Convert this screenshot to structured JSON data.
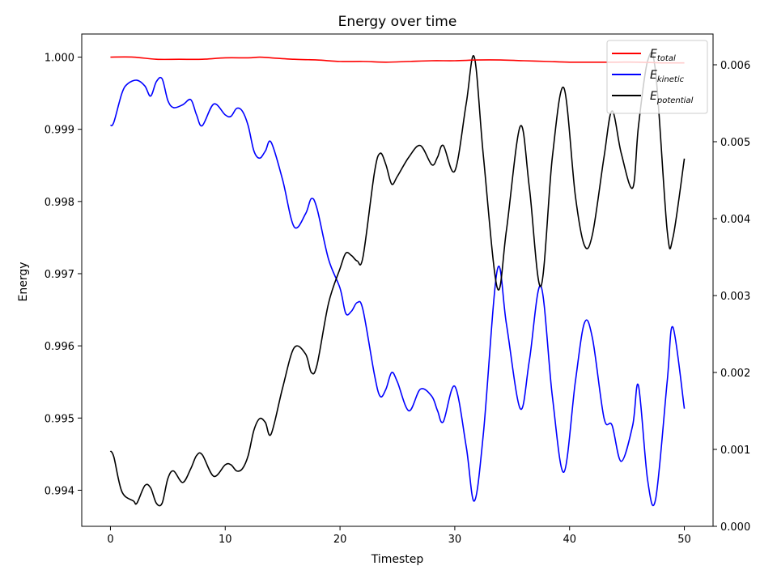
{
  "chart_data": {
    "type": "line",
    "title": "Energy over time",
    "xlabel": "Timestep",
    "ylabel": "Energy",
    "xlim": [
      -2.5,
      52.5
    ],
    "ylim_left": [
      0.9935,
      1.00032
    ],
    "ylim_right": [
      0.0,
      0.0064
    ],
    "x_ticks": [
      "0",
      "10",
      "20",
      "30",
      "40",
      "50"
    ],
    "y_left_ticks": [
      "0.994",
      "0.995",
      "0.996",
      "0.997",
      "0.998",
      "0.999",
      "1.000"
    ],
    "y_right_ticks": [
      "0.000",
      "0.001",
      "0.002",
      "0.003",
      "0.004",
      "0.005",
      "0.006"
    ],
    "grid": false,
    "legend": {
      "placement": "top-right",
      "entries": [
        {
          "base": "E",
          "sub": "total",
          "color": "#ff0000"
        },
        {
          "base": "E",
          "sub": "kinetic",
          "color": "#0000ff"
        },
        {
          "base": "E",
          "sub": "potential",
          "color": "#000000"
        }
      ]
    },
    "series": [
      {
        "label": "E_total",
        "axis": "left",
        "color": "#ff0000",
        "x": [
          0,
          2,
          4,
          6,
          8,
          10,
          12,
          13,
          14,
          16,
          18,
          20,
          22,
          24,
          26,
          28,
          30,
          32,
          34,
          36,
          38,
          40,
          42,
          44,
          46,
          48,
          50
        ],
        "y": [
          1.0,
          1.0,
          0.99997,
          0.99997,
          0.99997,
          0.99999,
          0.99999,
          1.0,
          0.99999,
          0.99997,
          0.99996,
          0.99994,
          0.99994,
          0.99993,
          0.99994,
          0.99995,
          0.99995,
          0.99996,
          0.99996,
          0.99995,
          0.99994,
          0.99993,
          0.99993,
          0.99993,
          0.99993,
          0.99992,
          0.99992
        ]
      },
      {
        "label": "E_kinetic",
        "axis": "left",
        "color": "#0000ff",
        "x": [
          0,
          0.3,
          1,
          1.5,
          2.3,
          3,
          3.5,
          4,
          4.5,
          5,
          5.5,
          6.3,
          7,
          7.5,
          8,
          9,
          10,
          10.5,
          11,
          11.5,
          12,
          12.5,
          13,
          13.5,
          14,
          15,
          16,
          17,
          17.5,
          18,
          19,
          20,
          20.5,
          21,
          21.5,
          22,
          23,
          23.5,
          24,
          24.5,
          25,
          26,
          27,
          28,
          28.5,
          29,
          30,
          31,
          31.7,
          32.5,
          33.7,
          34.5,
          35.7,
          36.5,
          37.5,
          38.5,
          39.5,
          40.5,
          41.3,
          42,
          43,
          43.7,
          44.5,
          45.5,
          46,
          46.8,
          47.5,
          48.5,
          49,
          50
        ],
        "y": [
          0.99905,
          0.9991,
          0.9995,
          0.99963,
          0.99968,
          0.9996,
          0.99946,
          0.99966,
          0.9997,
          0.9994,
          0.9993,
          0.99934,
          0.99941,
          0.9992,
          0.99905,
          0.99935,
          0.9992,
          0.99918,
          0.99929,
          0.99925,
          0.99905,
          0.9987,
          0.9986,
          0.9987,
          0.99882,
          0.9983,
          0.99765,
          0.99783,
          0.99804,
          0.9979,
          0.9972,
          0.9968,
          0.99645,
          0.99648,
          0.9966,
          0.9965,
          0.9956,
          0.9953,
          0.9954,
          0.99563,
          0.9955,
          0.9951,
          0.9954,
          0.9953,
          0.9951,
          0.99495,
          0.99544,
          0.9946,
          0.99385,
          0.9948,
          0.99705,
          0.9963,
          0.99513,
          0.9958,
          0.99683,
          0.9953,
          0.99425,
          0.9955,
          0.99632,
          0.9961,
          0.995,
          0.9949,
          0.9944,
          0.9949,
          0.99545,
          0.99414,
          0.99388,
          0.9955,
          0.99626,
          0.99513
        ]
      },
      {
        "label": "E_potential",
        "axis": "right",
        "color": "#000000",
        "x": [
          0,
          0.3,
          1,
          2,
          2.3,
          3,
          3.5,
          4,
          4.5,
          5,
          5.5,
          6.3,
          7,
          7.5,
          8,
          9,
          10,
          10.5,
          11,
          11.5,
          12,
          12.5,
          13,
          13.5,
          14,
          15,
          16,
          17,
          17.5,
          18,
          19,
          20,
          20.5,
          21,
          21.5,
          22,
          23,
          23.5,
          24,
          24.5,
          25,
          26,
          27,
          28,
          28.5,
          29,
          30,
          31,
          31.7,
          32.5,
          33.7,
          34.5,
          35.7,
          36.5,
          37.5,
          38.5,
          39.5,
          40.5,
          41.3,
          42,
          43,
          43.7,
          44.5,
          45.5,
          46,
          46.8,
          47.5,
          48.5,
          49,
          50
        ],
        "y": [
          0.00098,
          0.0009,
          0.00045,
          0.00033,
          0.0003,
          0.00053,
          0.0005,
          0.0003,
          0.0003,
          0.00062,
          0.00072,
          0.00057,
          0.00075,
          0.00092,
          0.00093,
          0.00065,
          0.0008,
          0.0008,
          0.00072,
          0.00075,
          0.00092,
          0.00125,
          0.0014,
          0.00135,
          0.0012,
          0.0018,
          0.00232,
          0.00224,
          0.002,
          0.0021,
          0.0029,
          0.00335,
          0.00355,
          0.00352,
          0.00345,
          0.0035,
          0.0046,
          0.00485,
          0.0047,
          0.00445,
          0.00455,
          0.0048,
          0.00495,
          0.0047,
          0.0048,
          0.00495,
          0.00462,
          0.0055,
          0.0061,
          0.0048,
          0.0031,
          0.00385,
          0.0052,
          0.0044,
          0.00312,
          0.0048,
          0.0057,
          0.0043,
          0.00365,
          0.0038,
          0.0048,
          0.0054,
          0.00485,
          0.0044,
          0.0052,
          0.00605,
          0.0059,
          0.00385,
          0.00375,
          0.00478
        ]
      }
    ]
  }
}
